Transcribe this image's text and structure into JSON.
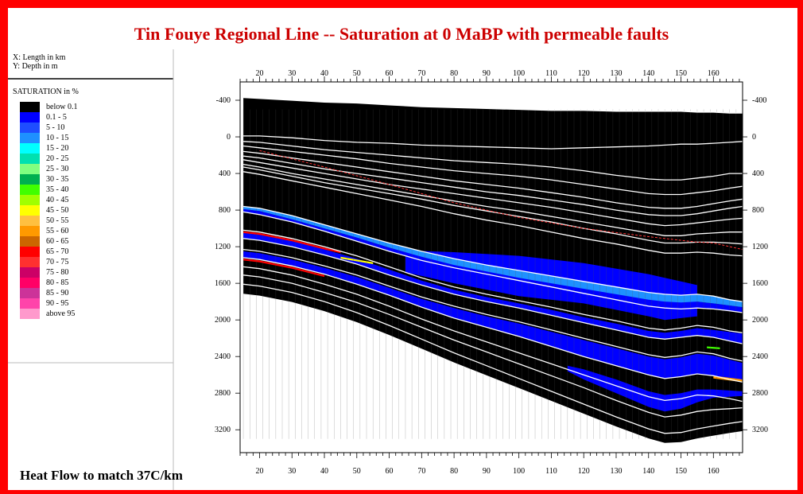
{
  "title": "Tin Fouye Regional Line -- Saturation at 0  MaBP with permeable faults",
  "axis_info": {
    "x": "X: Length in km",
    "y": "Y: Depth in m"
  },
  "legend": {
    "title": "SATURATION in %",
    "items": [
      {
        "label": "below 0.1",
        "color": "#000000"
      },
      {
        "label": "0.1 - 5",
        "color": "#0000ff"
      },
      {
        "label": "5 - 10",
        "color": "#1e4dff"
      },
      {
        "label": "10 - 15",
        "color": "#1e90ff"
      },
      {
        "label": "15 - 20",
        "color": "#00ffff"
      },
      {
        "label": "20 - 25",
        "color": "#00e0b0"
      },
      {
        "label": "25 - 30",
        "color": "#80ff80"
      },
      {
        "label": "30 - 35",
        "color": "#00b050"
      },
      {
        "label": "35 - 40",
        "color": "#40ff00"
      },
      {
        "label": "40 - 45",
        "color": "#a0ff00"
      },
      {
        "label": "45 - 50",
        "color": "#ffff00"
      },
      {
        "label": "50 - 55",
        "color": "#ffc040"
      },
      {
        "label": "55 - 60",
        "color": "#ff9900"
      },
      {
        "label": "60 - 65",
        "color": "#cc6600"
      },
      {
        "label": "65 - 70",
        "color": "#ff0000"
      },
      {
        "label": "70 - 75",
        "color": "#ff3030"
      },
      {
        "label": "75 - 80",
        "color": "#cc0066"
      },
      {
        "label": "80 - 85",
        "color": "#ff0066"
      },
      {
        "label": "85 - 90",
        "color": "#cc3399"
      },
      {
        "label": "90 - 95",
        "color": "#ff44aa"
      },
      {
        "label": "above 95",
        "color": "#ff99cc"
      }
    ]
  },
  "footer": "Heat Flow to match 37C/km",
  "colors": {
    "frame": "#ff0000",
    "title": "#cc0000",
    "horizon": "#ffffff",
    "fault_trace": "#ff3333"
  },
  "chart_data": {
    "type": "heatmap",
    "title": "Tin Fouye Regional Line -- Saturation at 0  MaBP with permeable faults",
    "xlabel": "Length in km",
    "ylabel": "Depth in m",
    "xlim": [
      14,
      169
    ],
    "ylim": [
      3450,
      -600
    ],
    "y_inverted": true,
    "x_ticks": [
      20,
      30,
      40,
      50,
      60,
      70,
      80,
      90,
      100,
      110,
      120,
      130,
      140,
      150,
      160
    ],
    "y_ticks": [
      -400,
      0,
      400,
      800,
      1200,
      1600,
      2000,
      2400,
      2800,
      3200
    ],
    "x_tick_labels": [
      "20",
      "30",
      "40",
      "50",
      "60",
      "70",
      "80",
      "90",
      "100",
      "110",
      "120",
      "130",
      "140",
      "150",
      "160"
    ],
    "y_tick_labels": [
      "-400",
      "0",
      "400",
      "800",
      "1200",
      "1600",
      "2000",
      "2400",
      "2800",
      "3200"
    ],
    "horizons_x": [
      15,
      20,
      30,
      40,
      50,
      60,
      70,
      80,
      90,
      100,
      110,
      120,
      130,
      140,
      145,
      150,
      155,
      160,
      165,
      169
    ],
    "horizons": [
      [
        -430,
        -420,
        -400,
        -380,
        -370,
        -350,
        -330,
        -320,
        -310,
        -300,
        -290,
        -290,
        -280,
        -280,
        -280,
        -280,
        -270,
        -270,
        -260,
        -260
      ],
      [
        -10,
        -10,
        10,
        40,
        60,
        70,
        90,
        100,
        110,
        120,
        130,
        120,
        110,
        100,
        90,
        80,
        80,
        70,
        60,
        50
      ],
      [
        50,
        60,
        100,
        140,
        170,
        200,
        230,
        260,
        280,
        300,
        330,
        370,
        420,
        460,
        470,
        470,
        450,
        430,
        400,
        400
      ],
      [
        100,
        120,
        160,
        200,
        240,
        290,
        330,
        370,
        400,
        430,
        470,
        520,
        570,
        620,
        630,
        630,
        610,
        590,
        560,
        540
      ],
      [
        160,
        180,
        230,
        280,
        330,
        380,
        430,
        480,
        520,
        560,
        610,
        660,
        720,
        770,
        780,
        780,
        760,
        730,
        700,
        680
      ],
      [
        210,
        230,
        290,
        350,
        400,
        450,
        500,
        550,
        600,
        640,
        690,
        740,
        800,
        850,
        860,
        860,
        840,
        810,
        780,
        760
      ],
      [
        250,
        280,
        340,
        400,
        460,
        520,
        570,
        620,
        670,
        720,
        770,
        830,
        890,
        950,
        970,
        960,
        940,
        920,
        900,
        890
      ],
      [
        300,
        330,
        400,
        460,
        520,
        580,
        640,
        700,
        760,
        810,
        870,
        930,
        990,
        1050,
        1080,
        1080,
        1060,
        1050,
        1040,
        1040
      ],
      [
        330,
        360,
        430,
        500,
        560,
        620,
        680,
        750,
        810,
        870,
        930,
        1000,
        1060,
        1130,
        1160,
        1160,
        1150,
        1150,
        1160,
        1170
      ],
      [
        380,
        410,
        480,
        550,
        620,
        690,
        760,
        840,
        910,
        970,
        1040,
        1110,
        1170,
        1240,
        1270,
        1270,
        1260,
        1270,
        1290,
        1300
      ],
      [
        760,
        780,
        860,
        960,
        1060,
        1160,
        1250,
        1330,
        1400,
        1460,
        1520,
        1580,
        1640,
        1700,
        1720,
        1730,
        1720,
        1740,
        1780,
        1800
      ],
      [
        820,
        850,
        930,
        1030,
        1140,
        1250,
        1350,
        1430,
        1500,
        1570,
        1640,
        1710,
        1780,
        1850,
        1870,
        1880,
        1870,
        1880,
        1900,
        1920
      ],
      [
        1020,
        1040,
        1110,
        1200,
        1300,
        1420,
        1540,
        1640,
        1720,
        1790,
        1860,
        1940,
        2010,
        2090,
        2110,
        2090,
        2060,
        2080,
        2120,
        2140
      ],
      [
        1110,
        1130,
        1200,
        1290,
        1390,
        1510,
        1620,
        1720,
        1800,
        1870,
        1950,
        2030,
        2110,
        2190,
        2210,
        2190,
        2170,
        2190,
        2230,
        2260
      ],
      [
        1230,
        1250,
        1320,
        1410,
        1510,
        1630,
        1750,
        1850,
        1940,
        2020,
        2110,
        2200,
        2290,
        2380,
        2410,
        2390,
        2350,
        2370,
        2420,
        2450
      ],
      [
        1320,
        1340,
        1410,
        1500,
        1610,
        1730,
        1860,
        1980,
        2080,
        2180,
        2290,
        2400,
        2500,
        2600,
        2640,
        2620,
        2590,
        2610,
        2650,
        2680
      ],
      [
        1420,
        1440,
        1510,
        1610,
        1720,
        1850,
        1990,
        2120,
        2240,
        2360,
        2480,
        2600,
        2720,
        2840,
        2880,
        2860,
        2820,
        2830,
        2860,
        2890
      ],
      [
        1510,
        1530,
        1600,
        1700,
        1810,
        1940,
        2080,
        2220,
        2350,
        2480,
        2610,
        2740,
        2880,
        3010,
        3060,
        3040,
        3000,
        2980,
        2970,
        2960
      ],
      [
        1610,
        1630,
        1700,
        1800,
        1920,
        2060,
        2210,
        2360,
        2500,
        2640,
        2780,
        2920,
        3060,
        3190,
        3240,
        3230,
        3190,
        3160,
        3130,
        3110
      ]
    ],
    "fault_trace": {
      "x": [
        20,
        40,
        60,
        80,
        100,
        120,
        140,
        155,
        160,
        169
      ],
      "y": [
        150,
        330,
        520,
        720,
        880,
        1000,
        1090,
        1150,
        1160,
        1230
      ]
    },
    "saturation_bodies": [
      {
        "class": "0.1 - 5",
        "x": [
          15,
          20,
          30,
          40,
          50,
          60,
          70,
          80,
          90,
          100,
          110,
          120,
          130,
          140,
          145,
          150,
          155,
          160,
          169
        ],
        "top": [
          790,
          810,
          900,
          1000,
          1100,
          1210,
          1310,
          1400,
          1470,
          1540,
          1600,
          1660,
          1720,
          1780,
          1800,
          1810,
          1800,
          1820,
          1860
        ],
        "bottom": [
          820,
          850,
          930,
          1030,
          1140,
          1250,
          1350,
          1430,
          1500,
          1570,
          1640,
          1710,
          1780,
          1850,
          1870,
          1880,
          1870,
          1880,
          1920
        ]
      },
      {
        "class": "0.1 - 5",
        "x": [
          65,
          80,
          100,
          120,
          140,
          145,
          150,
          155
        ],
        "top": [
          1240,
          1260,
          1300,
          1380,
          1500,
          1540,
          1580,
          1620
        ],
        "bottom": [
          1480,
          1600,
          1740,
          1820,
          1960,
          2000,
          1980,
          1960
        ]
      },
      {
        "class": "0.1 - 5",
        "x": [
          15,
          20,
          30,
          40,
          50,
          60,
          70,
          80,
          90,
          100,
          110,
          120,
          130,
          140,
          145,
          150,
          155,
          160,
          169
        ],
        "top": [
          1050,
          1070,
          1140,
          1230,
          1330,
          1450,
          1570,
          1670,
          1750,
          1820,
          1890,
          1970,
          2040,
          2120,
          2140,
          2120,
          2090,
          2110,
          2150
        ],
        "bottom": [
          1110,
          1130,
          1200,
          1290,
          1390,
          1510,
          1620,
          1720,
          1800,
          1870,
          1950,
          2030,
          2110,
          2190,
          2210,
          2190,
          2170,
          2190,
          2260
        ]
      },
      {
        "class": "0.1 - 5",
        "x": [
          15,
          20,
          30,
          40,
          50,
          60,
          70,
          80,
          90,
          100,
          110,
          120,
          130,
          140,
          145,
          150,
          155,
          160,
          169
        ],
        "top": [
          1250,
          1270,
          1340,
          1430,
          1530,
          1650,
          1770,
          1870,
          1960,
          2040,
          2130,
          2220,
          2310,
          2400,
          2430,
          2410,
          2370,
          2390,
          2470
        ],
        "bottom": [
          1320,
          1340,
          1410,
          1500,
          1610,
          1730,
          1860,
          1980,
          2080,
          2180,
          2290,
          2400,
          2500,
          2600,
          2640,
          2620,
          2590,
          2610,
          2680
        ]
      },
      {
        "class": "0.1 - 5",
        "x": [
          115,
          120,
          130,
          140,
          145,
          150,
          155,
          160,
          169
        ],
        "top": [
          2500,
          2540,
          2650,
          2780,
          2820,
          2800,
          2760,
          2760,
          2780
        ],
        "bottom": [
          2560,
          2650,
          2800,
          2950,
          3000,
          2970,
          2900,
          2850,
          2830
        ]
      },
      {
        "class": "65 - 70",
        "x": [
          15,
          20,
          30,
          40,
          45
        ],
        "top": [
          1030,
          1050,
          1120,
          1210,
          1250
        ],
        "bottom": [
          1050,
          1070,
          1140,
          1230,
          1270
        ]
      },
      {
        "class": "65 - 70",
        "x": [
          15,
          20,
          30,
          40
        ],
        "top": [
          1330,
          1350,
          1420,
          1510
        ],
        "bottom": [
          1350,
          1370,
          1440,
          1530
        ]
      },
      {
        "class": "10 - 15",
        "x": [
          15,
          20,
          30,
          40,
          50,
          60,
          70,
          80,
          90,
          100,
          110,
          120,
          130,
          140,
          145,
          150,
          155,
          160,
          169
        ],
        "top": [
          760,
          780,
          860,
          960,
          1060,
          1160,
          1250,
          1330,
          1400,
          1460,
          1520,
          1580,
          1640,
          1700,
          1720,
          1730,
          1720,
          1740,
          1800
        ],
        "bottom": [
          790,
          810,
          900,
          1000,
          1100,
          1210,
          1310,
          1400,
          1470,
          1540,
          1600,
          1660,
          1720,
          1780,
          1800,
          1810,
          1800,
          1820,
          1860
        ]
      },
      {
        "class": "45 - 50",
        "x": [
          45,
          50,
          55
        ],
        "top": [
          1310,
          1340,
          1370
        ],
        "bottom": [
          1330,
          1360,
          1390
        ]
      },
      {
        "class": "55 - 60",
        "x": [
          160,
          169
        ],
        "top": [
          2610,
          2650
        ],
        "bottom": [
          2640,
          2680
        ]
      },
      {
        "class": "35 - 40",
        "x": [
          158,
          162
        ],
        "top": [
          2290,
          2300
        ],
        "bottom": [
          2310,
          2320
        ]
      }
    ]
  }
}
